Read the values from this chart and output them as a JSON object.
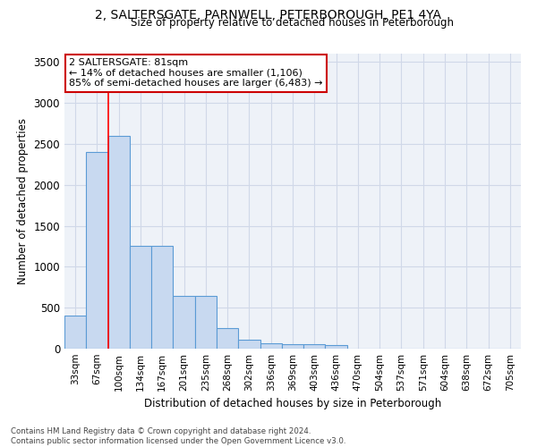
{
  "title1": "2, SALTERSGATE, PARNWELL, PETERBOROUGH, PE1 4YA",
  "title2": "Size of property relative to detached houses in Peterborough",
  "xlabel": "Distribution of detached houses by size in Peterborough",
  "ylabel": "Number of detached properties",
  "footnote": "Contains HM Land Registry data © Crown copyright and database right 2024.\nContains public sector information licensed under the Open Government Licence v3.0.",
  "categories": [
    "33sqm",
    "67sqm",
    "100sqm",
    "134sqm",
    "167sqm",
    "201sqm",
    "235sqm",
    "268sqm",
    "302sqm",
    "336sqm",
    "369sqm",
    "403sqm",
    "436sqm",
    "470sqm",
    "504sqm",
    "537sqm",
    "571sqm",
    "604sqm",
    "638sqm",
    "672sqm",
    "705sqm"
  ],
  "values": [
    400,
    2400,
    2600,
    1250,
    1250,
    640,
    640,
    250,
    110,
    70,
    60,
    60,
    40,
    0,
    0,
    0,
    0,
    0,
    0,
    0,
    0
  ],
  "bar_color": "#c8d9f0",
  "bar_edge_color": "#5b9bd5",
  "grid_color": "#d0d8e8",
  "background_color": "#eef2f8",
  "red_line_x": 1.5,
  "annotation_text": "2 SALTERSGATE: 81sqm\n← 14% of detached houses are smaller (1,106)\n85% of semi-detached houses are larger (6,483) →",
  "annotation_box_color": "#ffffff",
  "annotation_box_edge": "#cc0000",
  "ylim": [
    0,
    3600
  ],
  "yticks": [
    0,
    500,
    1000,
    1500,
    2000,
    2500,
    3000,
    3500
  ]
}
